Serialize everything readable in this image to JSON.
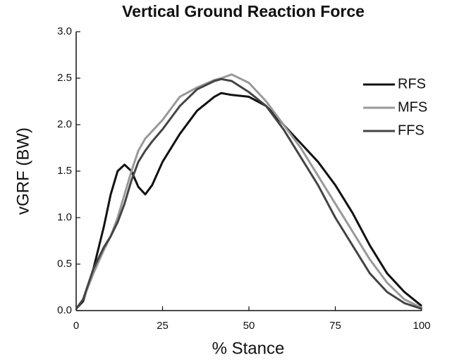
{
  "chart_data": {
    "type": "line",
    "title": "Vertical Ground Reaction Force",
    "x_label": "% Stance",
    "y_label": "vGRF (BW)",
    "x": [
      0,
      2,
      5,
      8,
      10,
      12,
      14,
      16,
      18,
      20,
      22,
      25,
      30,
      35,
      40,
      42,
      45,
      50,
      55,
      60,
      65,
      70,
      75,
      80,
      85,
      90,
      95,
      100
    ],
    "series": [
      {
        "name": "RFS",
        "color": "#111111",
        "values": [
          0.02,
          0.1,
          0.45,
          0.9,
          1.25,
          1.5,
          1.57,
          1.5,
          1.33,
          1.25,
          1.35,
          1.6,
          1.9,
          2.15,
          2.3,
          2.34,
          2.32,
          2.3,
          2.2,
          2.0,
          1.8,
          1.6,
          1.35,
          1.05,
          0.7,
          0.4,
          0.2,
          0.05
        ]
      },
      {
        "name": "MFS",
        "color": "#999999",
        "values": [
          0.02,
          0.12,
          0.4,
          0.65,
          0.8,
          1.0,
          1.25,
          1.5,
          1.72,
          1.85,
          1.93,
          2.05,
          2.3,
          2.4,
          2.48,
          2.5,
          2.54,
          2.45,
          2.25,
          2.0,
          1.75,
          1.45,
          1.15,
          0.85,
          0.55,
          0.3,
          0.12,
          0.03
        ]
      },
      {
        "name": "FFS",
        "color": "#444444",
        "values": [
          0.02,
          0.12,
          0.45,
          0.68,
          0.8,
          0.95,
          1.15,
          1.4,
          1.6,
          1.72,
          1.82,
          1.95,
          2.2,
          2.38,
          2.47,
          2.49,
          2.47,
          2.35,
          2.2,
          1.95,
          1.65,
          1.35,
          1.0,
          0.7,
          0.4,
          0.2,
          0.08,
          0.02
        ]
      }
    ],
    "xlim": [
      0,
      100
    ],
    "xticks": [
      0,
      25,
      50,
      75,
      100
    ],
    "ylim": [
      0,
      3
    ],
    "yticks": [
      {
        "value": 0,
        "label": "0.0"
      },
      0.5,
      {
        "value": 1,
        "label": "1.0"
      },
      1.5,
      {
        "value": 2,
        "label": "2.0"
      },
      2.5,
      {
        "value": 3,
        "label": "3.0"
      }
    ],
    "legend": "right"
  }
}
